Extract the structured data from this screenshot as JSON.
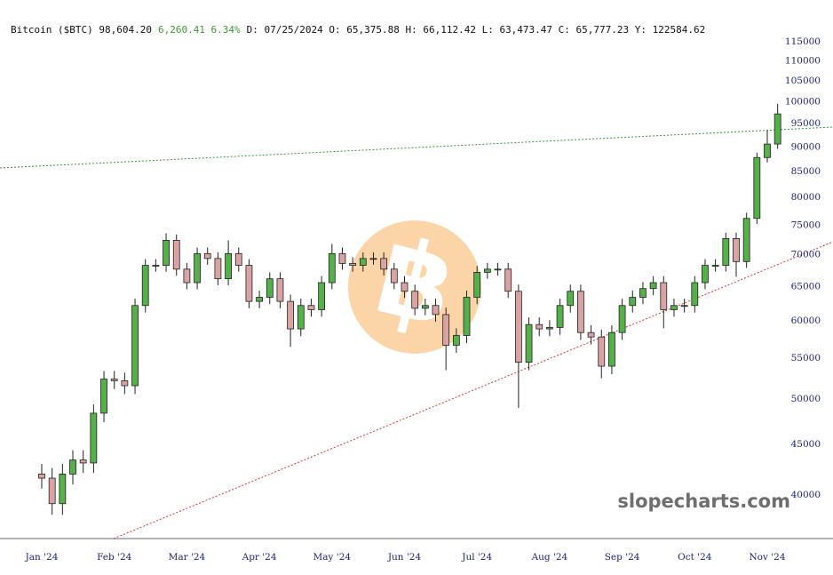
{
  "chart_data": {
    "type": "candlestick",
    "title": "Bitcoin ($BTC) 98,604.20",
    "change": "6,260.41 6.34%",
    "info": "D: 07/25/2024 O: 65,375.88 H: 66,112.42 L: 63,473.47 C: 65,777.23 Y: 122584.62",
    "watermark": "slopecharts.com",
    "log_scale": true,
    "grid": false,
    "up_color": "#55b04a",
    "down_color": "#d9a3a3",
    "categories": [
      "Jan '24",
      null,
      null,
      null,
      null,
      null,
      null,
      "Feb '24",
      null,
      null,
      null,
      null,
      null,
      null,
      "Mar '24",
      null,
      null,
      null,
      null,
      null,
      null,
      "Apr '24",
      null,
      null,
      null,
      null,
      null,
      null,
      "May '24",
      null,
      null,
      null,
      null,
      null,
      null,
      "Jun '24",
      null,
      null,
      null,
      null,
      null,
      null,
      "Jul '24",
      null,
      null,
      null,
      null,
      null,
      null,
      "Aug '24",
      null,
      null,
      null,
      null,
      null,
      null,
      "Sep '24",
      null,
      null,
      null,
      null,
      null,
      null,
      "Oct '24",
      null,
      null,
      null,
      null,
      null,
      null,
      "Nov '24",
      null
    ],
    "open": [
      42000,
      41600,
      39200,
      42000,
      43400,
      43100,
      48400,
      52400,
      52200,
      51600,
      62200,
      68300,
      68300,
      72400,
      67700,
      65600,
      70200,
      69400,
      66200,
      70200,
      68300,
      62800,
      63400,
      66200,
      62800,
      58900,
      62200,
      61600,
      65600,
      70200,
      68600,
      68300,
      69400,
      69400,
      67700,
      65600,
      64300,
      61800,
      62200,
      60900,
      56700,
      58000,
      63400,
      67200,
      67700,
      67700,
      64300,
      54500,
      59500,
      58900,
      59100,
      62200,
      64300,
      58400,
      57800,
      54000,
      58400,
      62200,
      63400,
      64700,
      65600,
      61600,
      62200,
      62200,
      65600,
      68300,
      68300,
      72700,
      68900,
      76200,
      87800,
      90600
    ],
    "high": [
      43000,
      42600,
      43000,
      44400,
      44400,
      49400,
      53400,
      53400,
      53200,
      63200,
      69300,
      69300,
      73600,
      73400,
      68700,
      71200,
      71200,
      70400,
      72400,
      71200,
      69300,
      64400,
      67200,
      67200,
      63800,
      63200,
      63200,
      66600,
      71800,
      71200,
      69600,
      70400,
      70400,
      70400,
      68700,
      66600,
      65300,
      63200,
      63200,
      61900,
      59000,
      64400,
      68200,
      68700,
      68700,
      68700,
      65300,
      60500,
      60500,
      60100,
      63200,
      65300,
      65300,
      59400,
      58800,
      59400,
      63200,
      64400,
      65700,
      66600,
      66600,
      63200,
      63200,
      66600,
      69300,
      69300,
      73700,
      73700,
      77200,
      88800,
      93500,
      99500
    ],
    "low": [
      40600,
      38200,
      38200,
      41000,
      42100,
      42100,
      47400,
      51200,
      50600,
      50600,
      61200,
      67300,
      67300,
      66700,
      64600,
      64600,
      68400,
      65200,
      65200,
      67300,
      61800,
      61800,
      62400,
      61800,
      56500,
      57900,
      60600,
      60600,
      64600,
      67600,
      67300,
      67300,
      68400,
      66700,
      64600,
      63300,
      60800,
      60800,
      59900,
      53500,
      55700,
      57000,
      62400,
      66200,
      66700,
      63300,
      49000,
      53500,
      57900,
      57900,
      58100,
      61200,
      57400,
      56800,
      52500,
      53000,
      57400,
      61200,
      62400,
      63700,
      59000,
      60600,
      61200,
      61200,
      64600,
      67300,
      67300,
      66500,
      67900,
      75200,
      86800,
      89600
    ],
    "close": [
      41600,
      39200,
      42000,
      43400,
      43100,
      48400,
      52400,
      52200,
      51600,
      62200,
      68300,
      68300,
      72400,
      67700,
      65600,
      70200,
      69400,
      66200,
      70200,
      68300,
      62800,
      63400,
      66200,
      62800,
      58900,
      62200,
      61600,
      65600,
      70200,
      68600,
      68300,
      69400,
      69400,
      67700,
      65600,
      64300,
      61800,
      62200,
      60900,
      56700,
      58000,
      63400,
      67200,
      67700,
      67700,
      64300,
      54500,
      59500,
      58900,
      59100,
      62200,
      64300,
      58400,
      57800,
      54000,
      58400,
      62200,
      63400,
      64700,
      65600,
      61600,
      62200,
      62200,
      65600,
      68300,
      68300,
      72700,
      68900,
      76200,
      87800,
      90600,
      97200
    ],
    "ylim": [
      36140,
      119100
    ],
    "yticks": [
      40000,
      45000,
      50000,
      55000,
      60000,
      65000,
      70000,
      75000,
      80000,
      85000,
      90000,
      95000,
      100000,
      105000,
      110000,
      115000
    ]
  }
}
